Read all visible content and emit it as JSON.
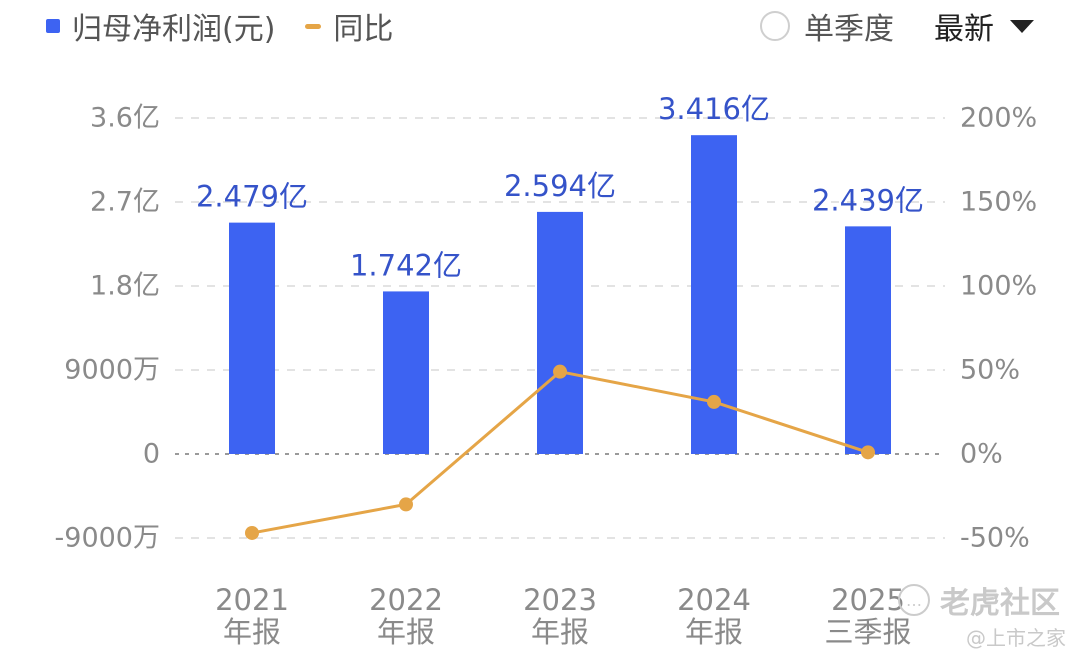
{
  "legend": {
    "bar_label": "归母净利润(元)",
    "line_label": "同比"
  },
  "controls": {
    "single_quarter_label": "单季度",
    "sort_label": "最新"
  },
  "watermark": {
    "brand": "老虎社区",
    "credit": "@上市之家"
  },
  "colors": {
    "bar": "#3d63f2",
    "line": "#e5a547",
    "bar_label": "#3553c9",
    "axis_text": "#8a8a8a",
    "grid": "#e3e3e3"
  },
  "chart_data": {
    "type": "bar",
    "categories": [
      [
        "2021",
        "年报"
      ],
      [
        "2022",
        "年报"
      ],
      [
        "2023",
        "年报"
      ],
      [
        "2024",
        "年报"
      ],
      [
        "2025",
        "三季报"
      ]
    ],
    "bar_series": {
      "values": [
        2.479,
        1.742,
        2.594,
        3.416,
        2.439
      ],
      "unit": "亿",
      "data_labels": [
        "2.479亿",
        "1.742亿",
        "2.594亿",
        "3.416亿",
        "2.439亿"
      ]
    },
    "line_series": {
      "values": [
        -47,
        -30,
        49,
        31,
        1
      ],
      "unit": "%"
    },
    "y_left": {
      "ticks": [
        -0.9,
        0,
        0.9,
        1.8,
        2.7,
        3.6
      ],
      "tick_labels": [
        "-9000万",
        "0",
        "9000万",
        "1.8亿",
        "2.7亿",
        "3.6亿"
      ],
      "ylim": [
        -0.9,
        3.6
      ]
    },
    "y_right": {
      "ticks": [
        -50,
        0,
        50,
        100,
        150,
        200
      ],
      "tick_labels": [
        "-50%",
        "0%",
        "50%",
        "100%",
        "150%",
        "200%"
      ],
      "ylim": [
        -50,
        200
      ]
    },
    "grid": true,
    "legend_position": "top-left"
  }
}
